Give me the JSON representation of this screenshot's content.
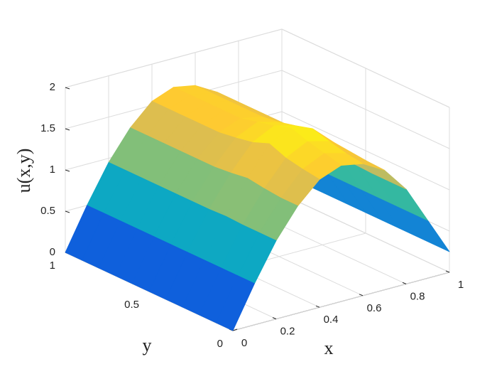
{
  "chart_data": {
    "type": "surface",
    "xlabel": "x",
    "ylabel": "y",
    "zlabel": "u(x,y)",
    "x": [
      0,
      0.1,
      0.2,
      0.3,
      0.4,
      0.5,
      0.6,
      0.7,
      0.8,
      0.9,
      1
    ],
    "y": [
      0,
      0.1,
      0.2,
      0.3,
      0.4,
      0.5,
      0.6,
      0.7,
      0.8,
      0.9,
      1
    ],
    "z": [
      [
        0,
        0.5,
        0.95,
        1.3,
        1.55,
        1.65,
        1.6,
        1.45,
        1.15,
        0.7,
        0.25
      ],
      [
        0,
        0.5,
        0.95,
        1.3,
        1.58,
        1.7,
        1.63,
        1.46,
        1.15,
        0.7,
        0.25
      ],
      [
        0,
        0.5,
        0.95,
        1.32,
        1.62,
        1.75,
        1.68,
        1.48,
        1.15,
        0.7,
        0.25
      ],
      [
        0,
        0.5,
        0.96,
        1.35,
        1.7,
        1.82,
        1.74,
        1.5,
        1.16,
        0.7,
        0.25
      ],
      [
        0,
        0.5,
        0.95,
        1.32,
        1.62,
        1.75,
        1.68,
        1.48,
        1.15,
        0.7,
        0.25
      ],
      [
        0,
        0.5,
        0.95,
        1.3,
        1.58,
        1.7,
        1.63,
        1.46,
        1.15,
        0.7,
        0.25
      ],
      [
        0,
        0.5,
        0.95,
        1.3,
        1.55,
        1.65,
        1.6,
        1.45,
        1.15,
        0.7,
        0.25
      ],
      [
        0,
        0.5,
        0.95,
        1.3,
        1.55,
        1.65,
        1.6,
        1.45,
        1.15,
        0.7,
        0.25
      ],
      [
        0,
        0.5,
        0.95,
        1.3,
        1.55,
        1.65,
        1.6,
        1.45,
        1.15,
        0.7,
        0.25
      ],
      [
        0,
        0.5,
        0.95,
        1.3,
        1.55,
        1.65,
        1.6,
        1.45,
        1.15,
        0.7,
        0.25
      ],
      [
        0,
        0.5,
        0.95,
        1.3,
        1.55,
        1.65,
        1.6,
        1.45,
        1.15,
        0.7,
        0.25
      ]
    ],
    "xlim": [
      0,
      1
    ],
    "ylim": [
      0,
      1
    ],
    "zlim": [
      0,
      2
    ],
    "xticks": [
      0,
      0.2,
      0.4,
      0.6,
      0.8,
      1
    ],
    "yticks": [
      0,
      0.5,
      1
    ],
    "zticks": [
      0,
      0.5,
      1,
      1.5,
      2
    ],
    "grid": true,
    "colormap": [
      "#352a87",
      "#0f5cdd",
      "#1481d6",
      "#06a4ca",
      "#2eb7a4",
      "#87bf77",
      "#d1bb59",
      "#fec832",
      "#f9fb0e"
    ]
  }
}
